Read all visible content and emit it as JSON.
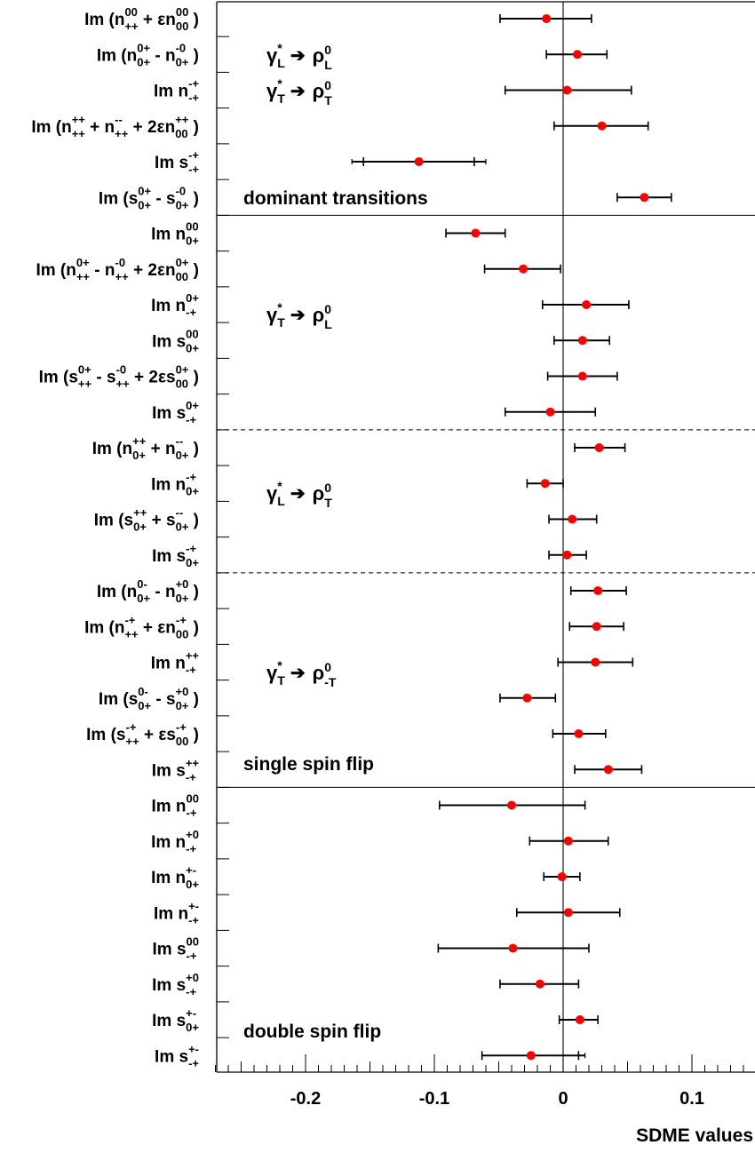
{
  "chart_data": {
    "type": "scatter",
    "xlabel": "SDME values",
    "xlim": [
      -0.27,
      0.148
    ],
    "x_ticks": [
      -0.2,
      -0.1,
      0,
      0.1
    ],
    "x_tick_labels": [
      "-0.2",
      "-0.1",
      "0",
      "0.1"
    ],
    "grid": false,
    "rows": [
      {
        "b": "Im (n",
        "sup": "00",
        "sub": "++",
        "s": [
          {
            "t": " + εn",
            "sup": "00",
            "sub": "00"
          }
        ],
        "e": " )",
        "value": -0.013,
        "stat": [
          -0.049,
          0.022
        ],
        "total": [
          -0.049,
          0.022
        ]
      },
      {
        "b": "Im (n",
        "sup": "0+",
        "sub": "0+",
        "s": [
          {
            "t": " - n",
            "sup": "-0",
            "sub": "0+"
          }
        ],
        "e": " )",
        "value": 0.011,
        "stat": [
          -0.013,
          0.034
        ],
        "total": [
          -0.013,
          0.034
        ]
      },
      {
        "b": "Im n",
        "sup": "-+",
        "sub": "-+",
        "s": [],
        "e": "",
        "value": 0.003,
        "stat": [
          -0.045,
          0.053
        ],
        "total": [
          -0.045,
          0.053
        ]
      },
      {
        "b": "Im (n",
        "sup": "++",
        "sub": "++",
        "s": [
          {
            "t": " + n",
            "sup": "--",
            "sub": "++"
          },
          {
            "t": " + 2εn",
            "sup": "++",
            "sub": "00"
          }
        ],
        "e": " )",
        "value": 0.03,
        "stat": [
          -0.007,
          0.066
        ],
        "total": [
          -0.007,
          0.066
        ]
      },
      {
        "b": "Im s",
        "sup": "-+",
        "sub": "-+",
        "s": [],
        "e": "",
        "value": -0.112,
        "stat": [
          -0.155,
          -0.069
        ],
        "total": [
          -0.164,
          -0.06
        ]
      },
      {
        "b": "Im (s",
        "sup": "0+",
        "sub": "0+",
        "s": [
          {
            "t": " - s",
            "sup": "-0",
            "sub": "0+"
          }
        ],
        "e": " )",
        "value": 0.063,
        "stat": [
          0.042,
          0.084
        ],
        "total": [
          0.042,
          0.084
        ]
      },
      {
        "b": "Im n",
        "sup": "00",
        "sub": "0+",
        "s": [],
        "e": "",
        "value": -0.068,
        "stat": [
          -0.091,
          -0.045
        ],
        "total": [
          -0.091,
          -0.045
        ]
      },
      {
        "b": "Im (n",
        "sup": "0+",
        "sub": "++",
        "s": [
          {
            "t": " - n",
            "sup": "-0",
            "sub": "++"
          },
          {
            "t": " + 2εn",
            "sup": "0+",
            "sub": "00"
          }
        ],
        "e": " )",
        "value": -0.031,
        "stat": [
          -0.061,
          -0.002
        ],
        "total": [
          -0.061,
          -0.002
        ]
      },
      {
        "b": "Im n",
        "sup": "0+",
        "sub": "-+",
        "s": [],
        "e": "",
        "value": 0.018,
        "stat": [
          -0.016,
          0.051
        ],
        "total": [
          -0.016,
          0.051
        ]
      },
      {
        "b": "Im s",
        "sup": "00",
        "sub": "0+",
        "s": [],
        "e": "",
        "value": 0.015,
        "stat": [
          -0.007,
          0.036
        ],
        "total": [
          -0.007,
          0.036
        ]
      },
      {
        "b": "Im (s",
        "sup": "0+",
        "sub": "++",
        "s": [
          {
            "t": " - s",
            "sup": "-0",
            "sub": "++"
          },
          {
            "t": " + 2εs",
            "sup": "0+",
            "sub": "00"
          }
        ],
        "e": " )",
        "value": 0.015,
        "stat": [
          -0.012,
          0.042
        ],
        "total": [
          -0.012,
          0.042
        ]
      },
      {
        "b": "Im s",
        "sup": "0+",
        "sub": "-+",
        "s": [],
        "e": "",
        "value": -0.01,
        "stat": [
          -0.045,
          0.025
        ],
        "total": [
          -0.045,
          0.025
        ]
      },
      {
        "b": "Im (n",
        "sup": "++",
        "sub": "0+",
        "s": [
          {
            "t": " + n",
            "sup": "--",
            "sub": "0+"
          }
        ],
        "e": " )",
        "value": 0.028,
        "stat": [
          0.009,
          0.048
        ],
        "total": [
          0.009,
          0.048
        ]
      },
      {
        "b": "Im n",
        "sup": "-+",
        "sub": "0+",
        "s": [],
        "e": "",
        "value": -0.014,
        "stat": [
          -0.028,
          0.0
        ],
        "total": [
          -0.028,
          0.0
        ]
      },
      {
        "b": "Im (s",
        "sup": "++",
        "sub": "0+",
        "s": [
          {
            "t": " + s",
            "sup": "--",
            "sub": "0+"
          }
        ],
        "e": " )",
        "value": 0.007,
        "stat": [
          -0.011,
          0.026
        ],
        "total": [
          -0.011,
          0.026
        ]
      },
      {
        "b": "Im s",
        "sup": "-+",
        "sub": "0+",
        "s": [],
        "e": "",
        "value": 0.003,
        "stat": [
          -0.011,
          0.018
        ],
        "total": [
          -0.011,
          0.018
        ]
      },
      {
        "b": "Im (n",
        "sup": "0-",
        "sub": "0+",
        "s": [
          {
            "t": " - n",
            "sup": "+0",
            "sub": "0+"
          }
        ],
        "e": " )",
        "value": 0.027,
        "stat": [
          0.006,
          0.049
        ],
        "total": [
          0.006,
          0.049
        ]
      },
      {
        "b": "Im (n",
        "sup": "-+",
        "sub": "++",
        "s": [
          {
            "t": " + εn",
            "sup": "-+",
            "sub": "00"
          }
        ],
        "e": " )",
        "value": 0.026,
        "stat": [
          0.005,
          0.047
        ],
        "total": [
          0.005,
          0.047
        ]
      },
      {
        "b": "Im n",
        "sup": "++",
        "sub": "-+",
        "s": [],
        "e": "",
        "value": 0.025,
        "stat": [
          -0.004,
          0.054
        ],
        "total": [
          -0.004,
          0.054
        ]
      },
      {
        "b": "Im (s",
        "sup": "0-",
        "sub": "0+",
        "s": [
          {
            "t": " - s",
            "sup": "+0",
            "sub": "0+"
          }
        ],
        "e": " )",
        "value": -0.028,
        "stat": [
          -0.049,
          -0.006
        ],
        "total": [
          -0.049,
          -0.006
        ]
      },
      {
        "b": "Im (s",
        "sup": "-+",
        "sub": "++",
        "s": [
          {
            "t": " + εs",
            "sup": "-+",
            "sub": "00"
          }
        ],
        "e": " )",
        "value": 0.012,
        "stat": [
          -0.008,
          0.033
        ],
        "total": [
          -0.008,
          0.033
        ]
      },
      {
        "b": "Im s",
        "sup": "++",
        "sub": "-+",
        "s": [],
        "e": "",
        "value": 0.035,
        "stat": [
          0.009,
          0.061
        ],
        "total": [
          0.009,
          0.061
        ]
      },
      {
        "b": "Im n",
        "sup": "00",
        "sub": "-+",
        "s": [],
        "e": "",
        "value": -0.04,
        "stat": [
          -0.096,
          0.017
        ],
        "total": [
          -0.096,
          0.017
        ]
      },
      {
        "b": "Im n",
        "sup": "+0",
        "sub": "-+",
        "s": [],
        "e": "",
        "value": 0.004,
        "stat": [
          -0.026,
          0.035
        ],
        "total": [
          -0.026,
          0.035
        ]
      },
      {
        "b": "Im n",
        "sup": "+-",
        "sub": "0+",
        "s": [],
        "e": "",
        "value": -0.001,
        "stat": [
          -0.015,
          0.013
        ],
        "total": [
          -0.015,
          0.013
        ]
      },
      {
        "b": "Im n",
        "sup": "+-",
        "sub": "-+",
        "s": [],
        "e": "",
        "value": 0.004,
        "stat": [
          -0.036,
          0.044
        ],
        "total": [
          -0.036,
          0.044
        ]
      },
      {
        "b": "Im s",
        "sup": "00",
        "sub": "-+",
        "s": [],
        "e": "",
        "value": -0.039,
        "stat": [
          -0.097,
          0.02
        ],
        "total": [
          -0.097,
          0.02
        ]
      },
      {
        "b": "Im s",
        "sup": "+0",
        "sub": "-+",
        "s": [],
        "e": "",
        "value": -0.018,
        "stat": [
          -0.049,
          0.012
        ],
        "total": [
          -0.049,
          0.012
        ]
      },
      {
        "b": "Im s",
        "sup": "+-",
        "sub": "0+",
        "s": [],
        "e": "",
        "value": 0.013,
        "stat": [
          -0.003,
          0.027
        ],
        "total": [
          -0.003,
          0.027
        ]
      },
      {
        "b": "Im s",
        "sup": "+-",
        "sub": "-+",
        "s": [],
        "e": "",
        "value": -0.025,
        "stat": [
          -0.063,
          0.012
        ],
        "total": [
          -0.063,
          0.017
        ]
      }
    ],
    "separators": [
      {
        "after_row": 6,
        "style": "solid"
      },
      {
        "after_row": 12,
        "style": "dashed"
      },
      {
        "after_row": 16,
        "style": "dashed"
      },
      {
        "after_row": 22,
        "style": "solid"
      }
    ],
    "transition_labels": [
      {
        "text1": "γ",
        "sup1": "*",
        "sub1": "L",
        "arrow": "➔",
        "text2": "ρ",
        "sup2": "0",
        "sub2": "L"
      },
      {
        "text1": "γ",
        "sup1": "*",
        "sub1": "T",
        "arrow": "➔",
        "text2": "ρ",
        "sup2": "0",
        "sub2": "T"
      },
      {
        "text1": "γ",
        "sup1": "*",
        "sub1": "T",
        "arrow": "➔",
        "text2": "ρ",
        "sup2": "0",
        "sub2": "L"
      },
      {
        "text1": "γ",
        "sup1": "*",
        "sub1": "L",
        "arrow": "➔",
        "text2": "ρ",
        "sup2": "0",
        "sub2": "T"
      },
      {
        "text1": "γ",
        "sup1": "*",
        "sub1": "T",
        "arrow": "➔",
        "text2": "ρ",
        "sup2": "0",
        "sub2": "-T"
      }
    ],
    "group_titles": [
      "dominant transitions",
      "single spin flip",
      "double spin flip"
    ],
    "colors": {
      "marker": "#ff0000",
      "bar": "#000000",
      "frame": "#000000"
    }
  }
}
